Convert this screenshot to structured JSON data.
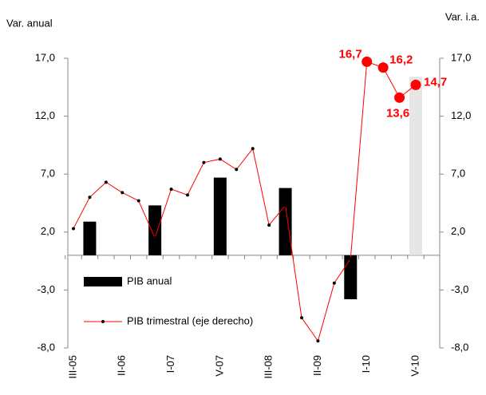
{
  "chart_data": {
    "type": "bar_line",
    "y_label": "Var. anual",
    "y2_label": "Var. i.a.",
    "categories": [
      "III-05",
      null,
      null,
      "II-06",
      null,
      null,
      "I-07",
      null,
      null,
      "V-07",
      null,
      null,
      "III-08",
      null,
      null,
      "II-09",
      null,
      null,
      "I-10",
      null,
      null,
      "V-10"
    ],
    "ylim": [
      -8,
      17
    ],
    "yticks": [
      {
        "value": -8,
        "label": "-8,0"
      },
      {
        "value": -3,
        "label": "-3,0"
      },
      {
        "value": 2,
        "label": "2,0"
      },
      {
        "value": 7,
        "label": "7,0"
      },
      {
        "value": 12,
        "label": "12,0"
      },
      {
        "value": 17,
        "label": "17,0"
      }
    ],
    "y2lim": [
      -8,
      17
    ],
    "y2ticks": [
      {
        "value": -8,
        "label": "-8,0"
      },
      {
        "value": -3,
        "label": "-3,0"
      },
      {
        "value": 2,
        "label": "2,0"
      },
      {
        "value": 7,
        "label": "7,0"
      },
      {
        "value": 12,
        "label": "12,0"
      },
      {
        "value": 17,
        "label": "17,0"
      }
    ],
    "series": [
      {
        "name": "PIB anual",
        "type": "bar",
        "color": "#000000",
        "colors": [
          null,
          "#000000",
          null,
          null,
          null,
          "#000000",
          null,
          null,
          null,
          "#000000",
          null,
          null,
          null,
          "#000000",
          null,
          null,
          null,
          "#000000",
          null,
          null,
          null,
          "#e6e6e6"
        ],
        "values": [
          null,
          2.9,
          null,
          null,
          null,
          4.3,
          null,
          null,
          null,
          6.7,
          null,
          null,
          null,
          5.8,
          null,
          null,
          null,
          -3.8,
          null,
          null,
          null,
          15.4
        ]
      },
      {
        "name": "PIB trimestral (eje derecho)",
        "type": "line",
        "color": "#ff0000",
        "axis": "y2",
        "values": [
          2.3,
          5.0,
          6.3,
          5.4,
          4.7,
          1.5,
          5.7,
          5.2,
          8.0,
          8.3,
          7.4,
          9.2,
          2.6,
          4.3,
          -5.4,
          -7.4,
          -2.4,
          -0.3,
          16.7,
          16.2,
          13.6,
          14.7
        ],
        "value_labels": [
          null,
          null,
          null,
          null,
          null,
          null,
          null,
          null,
          null,
          null,
          null,
          null,
          null,
          null,
          null,
          null,
          null,
          null,
          "16,7",
          "16,2",
          "13,6",
          "14,7"
        ]
      }
    ]
  }
}
